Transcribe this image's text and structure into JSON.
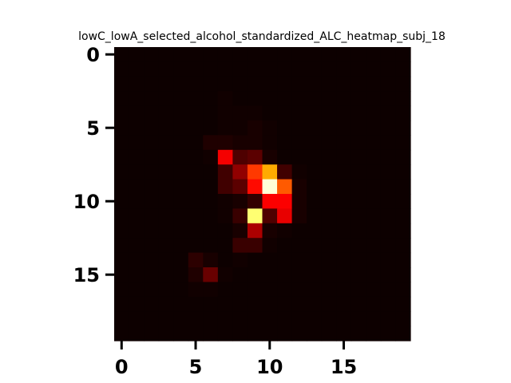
{
  "chart_data": {
    "type": "heatmap",
    "title": "lowC_lowA_selected_alcohol_standardized_ALC_heatmap_subj_18",
    "xlabel": "",
    "ylabel": "",
    "colormap": "hot",
    "background_color": "#0d0000",
    "rows": 20,
    "cols": 20,
    "xlim": [
      -0.5,
      19.5
    ],
    "ylim": [
      19.5,
      -0.5
    ],
    "xticks": [
      0,
      5,
      10,
      15
    ],
    "yticks": [
      0,
      5,
      10,
      15
    ],
    "vmin": 0,
    "vmax": 1,
    "values": [
      [
        0,
        0,
        0,
        0,
        0,
        0,
        0,
        0,
        0,
        0,
        0,
        0,
        0,
        0,
        0,
        0,
        0,
        0,
        0,
        0
      ],
      [
        0,
        0,
        0,
        0,
        0,
        0,
        0,
        0,
        0,
        0,
        0,
        0,
        0,
        0,
        0,
        0,
        0,
        0,
        0,
        0
      ],
      [
        0,
        0,
        0,
        0,
        0,
        0,
        0,
        0,
        0,
        0,
        0,
        0,
        0,
        0,
        0,
        0,
        0,
        0,
        0,
        0
      ],
      [
        0,
        0,
        0,
        0,
        0,
        0,
        0,
        0.01,
        0,
        0,
        0,
        0,
        0,
        0,
        0,
        0,
        0,
        0,
        0,
        0
      ],
      [
        0,
        0,
        0,
        0,
        0,
        0,
        0,
        0.01,
        0.01,
        0.01,
        0,
        0,
        0,
        0,
        0,
        0,
        0,
        0,
        0,
        0
      ],
      [
        0,
        0,
        0,
        0,
        0,
        0,
        0,
        0.01,
        0.01,
        0.02,
        0.01,
        0,
        0,
        0,
        0,
        0,
        0,
        0,
        0,
        0
      ],
      [
        0,
        0,
        0,
        0,
        0,
        0,
        0.03,
        0.03,
        0.02,
        0.02,
        0.01,
        0,
        0,
        0,
        0,
        0,
        0,
        0,
        0,
        0
      ],
      [
        0,
        0,
        0,
        0,
        0,
        0,
        0.01,
        0.35,
        0.1,
        0.12,
        0.02,
        0,
        0,
        0,
        0,
        0,
        0,
        0,
        0,
        0
      ],
      [
        0,
        0,
        0,
        0,
        0,
        0,
        0,
        0.08,
        0.2,
        0.45,
        0.62,
        0.08,
        0.01,
        0,
        0,
        0,
        0,
        0,
        0,
        0
      ],
      [
        0,
        0,
        0,
        0,
        0,
        0,
        0,
        0.08,
        0.12,
        0.38,
        0.96,
        0.5,
        0.02,
        0,
        0,
        0,
        0,
        0,
        0,
        0
      ],
      [
        0,
        0,
        0,
        0,
        0,
        0,
        0,
        0.01,
        0.02,
        0.06,
        0.36,
        0.36,
        0.02,
        0,
        0,
        0,
        0,
        0,
        0,
        0
      ],
      [
        0,
        0,
        0,
        0,
        0,
        0,
        0,
        0.01,
        0.07,
        0.86,
        0.1,
        0.33,
        0.02,
        0,
        0,
        0,
        0,
        0,
        0,
        0
      ],
      [
        0,
        0,
        0,
        0,
        0,
        0,
        0,
        0,
        0.02,
        0.24,
        0.02,
        0.01,
        0,
        0,
        0,
        0,
        0,
        0,
        0,
        0
      ],
      [
        0,
        0,
        0,
        0,
        0,
        0,
        0,
        0,
        0.07,
        0.07,
        0.01,
        0,
        0,
        0,
        0,
        0,
        0,
        0,
        0,
        0
      ],
      [
        0,
        0,
        0,
        0,
        0,
        0.05,
        0.02,
        0,
        0.01,
        0,
        0,
        0,
        0,
        0,
        0,
        0,
        0,
        0,
        0,
        0
      ],
      [
        0,
        0,
        0,
        0,
        0,
        0.03,
        0.14,
        0.01,
        0,
        0,
        0,
        0,
        0,
        0,
        0,
        0,
        0,
        0,
        0,
        0
      ],
      [
        0,
        0,
        0,
        0,
        0,
        0.01,
        0.01,
        0,
        0,
        0,
        0,
        0,
        0,
        0,
        0,
        0,
        0,
        0,
        0,
        0
      ],
      [
        0,
        0,
        0,
        0,
        0,
        0,
        0,
        0,
        0,
        0,
        0,
        0,
        0,
        0,
        0,
        0,
        0,
        0,
        0,
        0
      ],
      [
        0,
        0,
        0,
        0,
        0,
        0,
        0,
        0,
        0,
        0,
        0,
        0,
        0,
        0,
        0,
        0,
        0,
        0,
        0,
        0
      ],
      [
        0,
        0,
        0,
        0,
        0,
        0,
        0,
        0,
        0,
        0,
        0,
        0,
        0,
        0,
        0,
        0,
        0,
        0,
        0,
        0
      ]
    ]
  }
}
